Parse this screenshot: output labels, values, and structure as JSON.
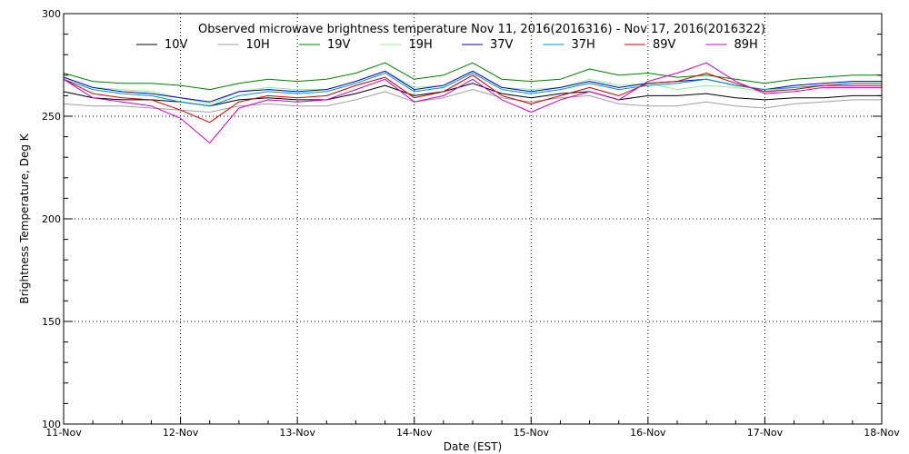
{
  "chart_data": {
    "type": "line",
    "title": "Observed microwave brightness temperature Nov 11, 2016(2016316) - Nov 17, 2016(2016322)",
    "xlabel": "Date (EST)",
    "ylabel": "Brightness Temperature, Deg K",
    "xlim": [
      0,
      7
    ],
    "ylim": [
      100,
      300
    ],
    "x_ticks": [
      {
        "value": 0,
        "label": "11-Nov"
      },
      {
        "value": 1,
        "label": "12-Nov"
      },
      {
        "value": 2,
        "label": "13-Nov"
      },
      {
        "value": 3,
        "label": "14-Nov"
      },
      {
        "value": 4,
        "label": "15-Nov"
      },
      {
        "value": 5,
        "label": "16-Nov"
      },
      {
        "value": 6,
        "label": "17-Nov"
      },
      {
        "value": 7,
        "label": "18-Nov"
      }
    ],
    "y_ticks": [
      100,
      150,
      200,
      250,
      300
    ],
    "grid": true,
    "legend_position": "top",
    "x": [
      0,
      0.25,
      0.5,
      0.75,
      1.0,
      1.25,
      1.5,
      1.75,
      2.0,
      2.25,
      2.5,
      2.75,
      3.0,
      3.25,
      3.5,
      3.75,
      4.0,
      4.25,
      4.5,
      4.75,
      5.0,
      5.25,
      5.5,
      5.75,
      6.0,
      6.25,
      6.5,
      6.75,
      7.0
    ],
    "series": [
      {
        "name": "10V",
        "color": "#000000",
        "values": [
          262,
          259,
          258,
          258,
          257,
          255,
          258,
          259,
          258,
          258,
          261,
          265,
          260,
          262,
          266,
          261,
          259,
          261,
          262,
          258,
          260,
          260,
          261,
          259,
          258,
          259,
          259,
          260,
          260
        ]
      },
      {
        "name": "10H",
        "color": "#a0a0a0",
        "values": [
          256,
          255,
          255,
          254,
          253,
          252,
          255,
          256,
          255,
          255,
          258,
          262,
          257,
          259,
          263,
          259,
          257,
          259,
          260,
          256,
          255,
          255,
          257,
          255,
          254,
          256,
          257,
          258,
          258
        ]
      },
      {
        "name": "19V",
        "color": "#008000",
        "values": [
          271,
          267,
          266,
          266,
          265,
          263,
          266,
          268,
          267,
          268,
          271,
          276,
          268,
          270,
          276,
          268,
          267,
          268,
          273,
          270,
          271,
          269,
          270,
          268,
          266,
          268,
          269,
          270,
          270
        ]
      },
      {
        "name": "19H",
        "color": "#90ee90",
        "values": [
          269,
          264,
          263,
          262,
          259,
          256,
          262,
          264,
          263,
          263,
          267,
          272,
          264,
          265,
          272,
          264,
          263,
          264,
          268,
          265,
          266,
          263,
          265,
          264,
          262,
          264,
          265,
          266,
          266
        ]
      },
      {
        "name": "37V",
        "color": "#0000cc",
        "values": [
          269,
          264,
          262,
          261,
          259,
          257,
          262,
          263,
          262,
          263,
          267,
          272,
          263,
          265,
          272,
          264,
          262,
          264,
          267,
          264,
          266,
          267,
          268,
          265,
          263,
          265,
          266,
          267,
          267
        ]
      },
      {
        "name": "37H",
        "color": "#0095c8",
        "values": [
          268,
          263,
          261,
          260,
          257,
          255,
          260,
          262,
          261,
          262,
          266,
          271,
          262,
          264,
          271,
          263,
          261,
          263,
          266,
          263,
          265,
          266,
          268,
          265,
          263,
          264,
          265,
          266,
          266
        ]
      },
      {
        "name": "89V",
        "color": "#cc0000",
        "values": [
          268,
          261,
          259,
          258,
          253,
          247,
          257,
          260,
          259,
          260,
          265,
          269,
          259,
          262,
          270,
          260,
          256,
          260,
          264,
          260,
          266,
          267,
          271,
          266,
          262,
          263,
          265,
          265,
          265
        ]
      },
      {
        "name": "89H",
        "color": "#cc00cc",
        "values": [
          268,
          259,
          257,
          255,
          249,
          237,
          254,
          258,
          257,
          258,
          263,
          268,
          257,
          260,
          268,
          258,
          252,
          258,
          262,
          258,
          267,
          271,
          276,
          267,
          261,
          262,
          264,
          264,
          264
        ]
      }
    ]
  }
}
